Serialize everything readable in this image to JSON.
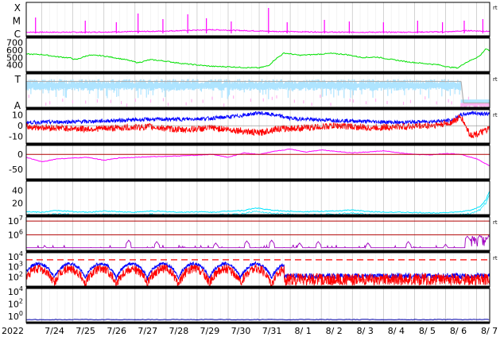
{
  "chart_data": {
    "type": "line",
    "year_label": "2022",
    "x_ticks": [
      "7/24",
      "7/25",
      "7/26",
      "7/27",
      "7/28",
      "7/29",
      "7/30",
      "7/31",
      "8/ 1",
      "8/ 2",
      "8/ 3",
      "8/ 4",
      "8/ 5",
      "8/ 6",
      "8/ 7"
    ],
    "x_range": [
      "2022-07-23T14:00",
      "2022-08-07T12:00"
    ],
    "grid": true,
    "colors": {
      "magenta": "#ff00ff",
      "green": "#00e000",
      "cyan": "#00e5ff",
      "lightblue": "#aee4ff",
      "pink": "#ffb3f0",
      "gray": "#b0b0b0",
      "blue": "#0000ff",
      "red": "#ff0000",
      "purple": "#a000c0",
      "darkred": "#b00000",
      "navy": "#0000aa"
    },
    "panels": [
      {
        "id": "xmc",
        "labels": [
          "X",
          "M",
          "C"
        ],
        "right_tag": "rt",
        "series": [
          {
            "color": "magenta",
            "baseline": [
              [
                0,
                1
              ],
              [
                2,
                1
              ],
              [
                4,
                1.2
              ],
              [
                6,
                1.6
              ],
              [
                8,
                1.2
              ],
              [
                10,
                1
              ],
              [
                12,
                1
              ],
              [
                13.6,
                1.1
              ],
              [
                14.2,
                1.4
              ],
              [
                14.92,
                1.2
              ]
            ],
            "spikes": [
              [
                0.3,
                2.6
              ],
              [
                1.9,
                2.2
              ],
              [
                2.9,
                2.0
              ],
              [
                3.6,
                3.1
              ],
              [
                4.4,
                2.4
              ],
              [
                5.2,
                3.0
              ],
              [
                5.8,
                2.5
              ],
              [
                6.6,
                2.1
              ],
              [
                7.8,
                3.8
              ],
              [
                8.4,
                2.0
              ],
              [
                9.6,
                2.3
              ],
              [
                10.4,
                2.1
              ],
              [
                11.5,
                2.0
              ],
              [
                12.6,
                2.2
              ],
              [
                13.4,
                2.0
              ],
              [
                14.1,
                2.2
              ],
              [
                14.7,
                2.4
              ]
            ]
          }
        ]
      },
      {
        "id": "speed",
        "y_ticks": [
          700,
          600,
          500,
          400
        ],
        "ylim": [
          300,
          760
        ],
        "series": [
          {
            "color": "green",
            "points": [
              [
                0,
                545
              ],
              [
                0.5,
                540
              ],
              [
                1,
                510
              ],
              [
                1.4,
                495
              ],
              [
                1.6,
                470
              ],
              [
                2,
                530
              ],
              [
                2.4,
                525
              ],
              [
                2.8,
                500
              ],
              [
                3.2,
                470
              ],
              [
                3.6,
                430
              ],
              [
                4,
                470
              ],
              [
                4.4,
                455
              ],
              [
                5,
                420
              ],
              [
                5.6,
                395
              ],
              [
                6,
                380
              ],
              [
                6.5,
                375
              ],
              [
                7,
                365
              ],
              [
                7.5,
                360
              ],
              [
                7.8,
                390
              ],
              [
                8,
                470
              ],
              [
                8.3,
                560
              ],
              [
                8.8,
                530
              ],
              [
                9.3,
                540
              ],
              [
                9.8,
                555
              ],
              [
                10.3,
                540
              ],
              [
                10.8,
                500
              ],
              [
                11.3,
                505
              ],
              [
                11.8,
                470
              ],
              [
                12.3,
                440
              ],
              [
                12.8,
                420
              ],
              [
                13.3,
                400
              ],
              [
                13.6,
                370
              ],
              [
                13.9,
                360
              ],
              [
                14.1,
                420
              ],
              [
                14.4,
                480
              ],
              [
                14.6,
                520
              ],
              [
                14.8,
                620
              ],
              [
                14.92,
                580
              ]
            ]
          }
        ]
      },
      {
        "id": "ta",
        "labels": [
          "T",
          "A"
        ],
        "right_tag": "rt",
        "series": [
          {
            "color": "lightblue",
            "band": [
              0.65,
              0.85
            ],
            "until": 14.0,
            "then": 0.18
          },
          {
            "color": "pink",
            "after": 14.0,
            "level": 0.15
          },
          {
            "color": "gray",
            "level": 0.78,
            "until": 14.0
          }
        ]
      },
      {
        "id": "bfield",
        "y_ticks": [
          10,
          0,
          -10
        ],
        "ylim": [
          -17,
          15
        ],
        "right_tag": "rt",
        "series": [
          {
            "color": "blue",
            "points": [
              [
                0,
                3
              ],
              [
                2,
                4
              ],
              [
                3,
                5
              ],
              [
                4,
                6
              ],
              [
                5,
                6
              ],
              [
                6,
                7
              ],
              [
                6.8,
                9
              ],
              [
                7.5,
                12
              ],
              [
                8,
                10
              ],
              [
                8.5,
                7
              ],
              [
                9,
                6
              ],
              [
                10,
                5
              ],
              [
                11,
                4
              ],
              [
                12,
                3
              ],
              [
                13,
                4
              ],
              [
                13.7,
                5
              ],
              [
                14,
                10
              ],
              [
                14.3,
                12
              ],
              [
                14.92,
                11
              ]
            ]
          },
          {
            "color": "red",
            "points": [
              [
                0,
                -1
              ],
              [
                1,
                -2
              ],
              [
                2,
                -3
              ],
              [
                3,
                -2
              ],
              [
                4,
                -1
              ],
              [
                5,
                -4
              ],
              [
                6,
                -2
              ],
              [
                7,
                -5
              ],
              [
                7.5,
                -7
              ],
              [
                8,
                -3
              ],
              [
                9,
                -2
              ],
              [
                10,
                0
              ],
              [
                11,
                -2
              ],
              [
                12,
                -1
              ],
              [
                13,
                0
              ],
              [
                13.6,
                2
              ],
              [
                14,
                8
              ],
              [
                14.3,
                -9
              ],
              [
                14.6,
                -7
              ],
              [
                14.92,
                -3
              ]
            ]
          }
        ]
      },
      {
        "id": "dst",
        "y_ticks": [
          0,
          -50
        ],
        "ylim": [
          -85,
          30
        ],
        "series": [
          {
            "color": "magenta",
            "points": [
              [
                0,
                -10
              ],
              [
                0.5,
                -25
              ],
              [
                1,
                -15
              ],
              [
                2,
                -10
              ],
              [
                2.5,
                -20
              ],
              [
                3,
                -12
              ],
              [
                4,
                -8
              ],
              [
                5,
                -5
              ],
              [
                6,
                0
              ],
              [
                6.5,
                -10
              ],
              [
                7,
                5
              ],
              [
                7.5,
                0
              ],
              [
                8,
                10
              ],
              [
                8.5,
                18
              ],
              [
                9,
                8
              ],
              [
                9.5,
                15
              ],
              [
                10,
                10
              ],
              [
                10.5,
                5
              ],
              [
                11,
                8
              ],
              [
                11.5,
                12
              ],
              [
                12,
                5
              ],
              [
                12.5,
                0
              ],
              [
                13,
                -2
              ],
              [
                13.5,
                3
              ],
              [
                14,
                0
              ],
              [
                14.5,
                -15
              ],
              [
                14.92,
                -38
              ]
            ]
          },
          {
            "color": "darkred",
            "level": 0
          }
        ]
      },
      {
        "id": "density",
        "y_ticks": [
          40,
          20
        ],
        "ylim": [
          0,
          55
        ],
        "series": [
          {
            "color": "cyan",
            "points": [
              [
                0,
                6
              ],
              [
                0.5,
                5
              ],
              [
                1,
                8
              ],
              [
                1.5,
                6
              ],
              [
                2,
                5
              ],
              [
                2.5,
                7
              ],
              [
                3,
                6
              ],
              [
                3.5,
                5
              ],
              [
                4,
                7
              ],
              [
                4.5,
                6
              ],
              [
                5,
                5
              ],
              [
                5.5,
                6
              ],
              [
                6,
                5
              ],
              [
                6.5,
                7
              ],
              [
                7,
                8
              ],
              [
                7.4,
                12
              ],
              [
                7.8,
                9
              ],
              [
                8.3,
                7
              ],
              [
                9,
                6
              ],
              [
                10,
                7
              ],
              [
                10.5,
                9
              ],
              [
                11,
                6
              ],
              [
                12,
                5
              ],
              [
                13,
                4
              ],
              [
                13.8,
                5
              ],
              [
                14.3,
                8
              ],
              [
                14.6,
                14
              ],
              [
                14.8,
                25
              ],
              [
                14.92,
                40
              ]
            ]
          }
        ]
      },
      {
        "id": "proton",
        "y_ticks": [
          "10^7",
          "10^6"
        ],
        "log": true,
        "ylim_exp": [
          4.8,
          7.3
        ],
        "right_tag": "rt",
        "series": [
          {
            "color": "darkred",
            "levels_exp": [
              7,
              6
            ]
          },
          {
            "color": "purple",
            "base_exp": 5.05,
            "bursts": [
              [
                0.6,
                5.2
              ],
              [
                3.3,
                5.6
              ],
              [
                4.2,
                5.5
              ],
              [
                6.1,
                5.4
              ],
              [
                7.1,
                5.55
              ],
              [
                7.9,
                5.6
              ],
              [
                8.8,
                5.4
              ],
              [
                9.4,
                5.5
              ],
              [
                11.0,
                5.4
              ],
              [
                12.3,
                5.5
              ],
              [
                13.5,
                5.3
              ],
              [
                14.2,
                5.9
              ],
              [
                14.6,
                5.95
              ],
              [
                14.9,
                5.9
              ]
            ]
          }
        ]
      },
      {
        "id": "electron",
        "y_ticks": [
          "10^4",
          "10^3",
          "10^2"
        ],
        "log": true,
        "ylim_exp": [
          1.0,
          4.4
        ],
        "right_tag": "rt",
        "series": [
          {
            "color": "red",
            "threshold_exp": 3.7
          },
          {
            "color": "blue",
            "diurnal": {
              "period": 1,
              "min_exp": 1.8,
              "max_exp": 3.3
            }
          },
          {
            "color": "red",
            "diurnal": {
              "period": 1,
              "min_exp": 1.2,
              "max_exp": 2.8
            }
          }
        ]
      },
      {
        "id": "neutron",
        "y_ticks": [
          "10^4",
          "10^2",
          "10^0"
        ],
        "log": true,
        "ylim_exp": [
          -1,
          4.5
        ],
        "series": [
          {
            "color": "navy",
            "level_exp": -0.5
          }
        ]
      }
    ]
  }
}
